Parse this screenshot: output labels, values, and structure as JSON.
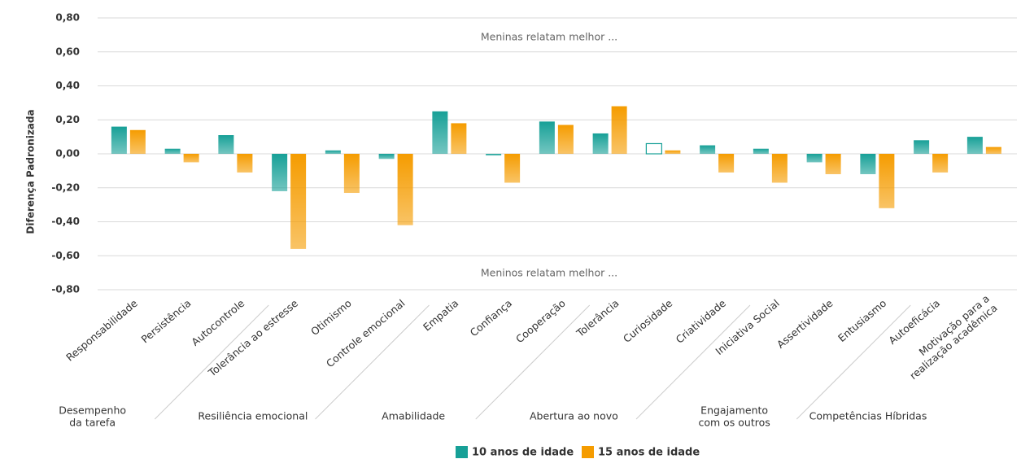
{
  "chart_data": {
    "type": "bar",
    "y_label": "Diferença Padronizada",
    "annotations": [
      "Meninas relatam melhor ...",
      "Meninos relatam melhor ..."
    ],
    "categories": [
      "Responsabilidade",
      "Persistência",
      "Autocontrole",
      "Tolerância ao estresse",
      "Otimismo",
      "Controle emocional",
      "Empatia",
      "Confiança",
      "Cooperação",
      "Tolerância",
      "Curiosidade",
      "Criatividade",
      "Iniciativa Social",
      "Assertividade",
      "Entusiasmo",
      "Autoeficácia",
      "Motivação para a\nrealização acadêmica"
    ],
    "groups": [
      {
        "label": "Desempenho\nda tarefa",
        "size": 3
      },
      {
        "label": "Resiliência emocional",
        "size": 3
      },
      {
        "label": "Amabilidade",
        "size": 3
      },
      {
        "label": "Abertura ao novo",
        "size": 3
      },
      {
        "label": "Engajamento\ncom os outros",
        "size": 3
      },
      {
        "label": "Competências Híbridas",
        "size": 2
      }
    ],
    "series": [
      {
        "name": "10 anos de idade",
        "color": "#17a097",
        "outlined": [
          10
        ],
        "values": [
          0.16,
          0.03,
          0.11,
          -0.22,
          0.02,
          -0.03,
          0.25,
          -0.01,
          0.19,
          0.12,
          0.06,
          0.05,
          0.03,
          -0.05,
          -0.12,
          0.08,
          0.1
        ]
      },
      {
        "name": "15 anos de idade",
        "color": "#f59c00",
        "values": [
          0.14,
          -0.05,
          -0.11,
          -0.56,
          -0.23,
          -0.42,
          0.18,
          -0.17,
          0.17,
          0.28,
          0.02,
          -0.11,
          -0.17,
          -0.12,
          -0.32,
          -0.11,
          0.04
        ]
      }
    ],
    "ylim": [
      -0.8,
      0.8
    ],
    "yticks": [
      {
        "value": 0.8,
        "label": "0,80"
      },
      {
        "value": 0.6,
        "label": "0,60"
      },
      {
        "value": 0.4,
        "label": "0,40"
      },
      {
        "value": 0.2,
        "label": "0,20"
      },
      {
        "value": 0,
        "label": "0,00"
      },
      {
        "value": -0.2,
        "label": "-0,20"
      },
      {
        "value": -0.4,
        "label": "-0,40"
      },
      {
        "value": -0.6,
        "label": "-0,60"
      },
      {
        "value": -0.8,
        "label": "-0,80"
      }
    ],
    "grid": true,
    "legend": "bottom"
  }
}
